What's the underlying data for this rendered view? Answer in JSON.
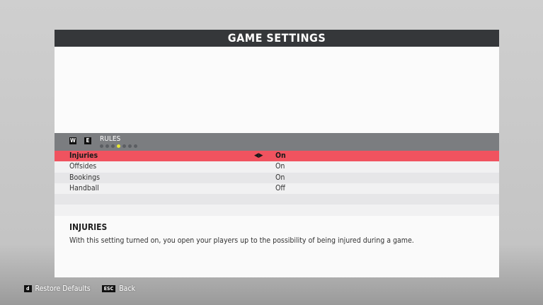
{
  "title": "GAME SETTINGS",
  "section": {
    "keys": [
      "W",
      "E"
    ],
    "label": "RULES",
    "dots": 7,
    "active_dot": 4
  },
  "rows": [
    {
      "label": "Injuries",
      "value": "On",
      "selected": true
    },
    {
      "label": "Offsides",
      "value": "On"
    },
    {
      "label": "Bookings",
      "value": "On"
    },
    {
      "label": "Handball",
      "value": "Off"
    },
    {
      "label": "",
      "value": ""
    },
    {
      "label": "",
      "value": ""
    }
  ],
  "description": {
    "title": "INJURIES",
    "text": "With this setting turned on, you open your players up to the possibility of being injured during a game."
  },
  "footer": {
    "restore_key": "d",
    "restore_label": "Restore Defaults",
    "back_key": "ESC",
    "back_label": "Back"
  },
  "colors": {
    "accent": "#f0535f",
    "active_dot": "#e8e832"
  }
}
